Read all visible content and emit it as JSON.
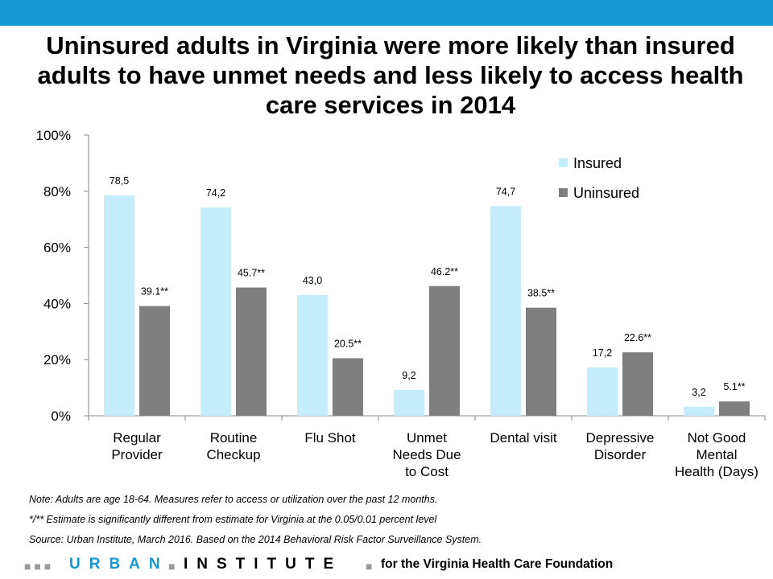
{
  "title": "Uninsured adults in Virginia were more likely than insured adults to have unmet needs and less likely to access health care services in 2014",
  "chart_data": {
    "type": "bar",
    "categories": [
      [
        "Regular",
        "Provider"
      ],
      [
        "Routine",
        "Checkup"
      ],
      [
        "Flu Shot"
      ],
      [
        "Unmet",
        "Needs Due",
        "to Cost"
      ],
      [
        "Dental visit"
      ],
      [
        "Depressive",
        "Disorder"
      ],
      [
        "Not Good",
        "Mental",
        "Health (Days)"
      ]
    ],
    "series": [
      {
        "name": "Insured",
        "color": "#c5ecfb",
        "values": [
          78.5,
          74.2,
          43.0,
          9.2,
          74.7,
          17.2,
          3.2
        ],
        "labels": [
          "78,5",
          "74,2",
          "43,0",
          "9,2",
          "74,7",
          "17,2",
          "3,2"
        ]
      },
      {
        "name": "Uninsured",
        "color": "#7f7f7f",
        "values": [
          39.1,
          45.7,
          20.5,
          46.2,
          38.5,
          22.6,
          5.1
        ],
        "labels": [
          "39.1**",
          "45.7**",
          "20.5**",
          "46.2**",
          "38.5**",
          "22.6**",
          "5.1**"
        ]
      }
    ],
    "ylim": [
      0,
      100
    ],
    "yticks": [
      0,
      20,
      40,
      60,
      80,
      100
    ],
    "ytick_labels": [
      "0%",
      "20%",
      "40%",
      "60%",
      "80%",
      "100%"
    ],
    "legend_position": "top-right",
    "grid": false
  },
  "notes": {
    "note": "Note: Adults are age 18-64. Measures refer to access or utilization over the past 12 months.",
    "significance": "*/** Estimate is significantly different from estimate for Virginia at the 0.05/0.01 percent level",
    "source": "Source: Urban Institute, March 2016. Based on the 2014 Behavioral Risk Factor Surveillance System."
  },
  "footer": {
    "brand_first": "URBAN",
    "brand_second": "INSTITUTE",
    "brand_first_color": "#1696d2",
    "brand_second_color": "#000000",
    "tagline": "for the Virginia Health Care Foundation"
  }
}
